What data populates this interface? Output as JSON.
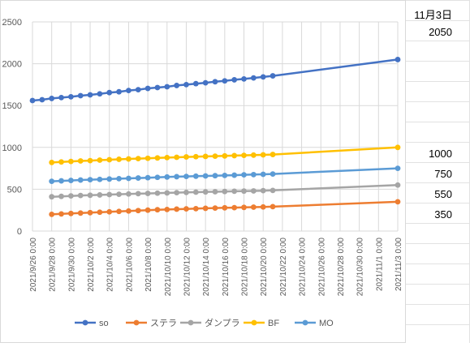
{
  "chart_data": {
    "type": "line",
    "x_tick_labels": [
      "2021/9/26 0:00",
      "2021/9/28 0:00",
      "2021/9/30 0:00",
      "2021/10/2 0:00",
      "2021/10/4 0:00",
      "2021/10/6 0:00",
      "2021/10/8 0:00",
      "2021/10/10 0:00",
      "2021/10/12 0:00",
      "2021/10/14 0:00",
      "2021/10/16 0:00",
      "2021/10/18 0:00",
      "2021/10/20 0:00",
      "2021/10/22 0:00",
      "2021/10/24 0:00",
      "2021/10/26 0:00",
      "2021/10/28 0:00",
      "2021/10/30 0:00",
      "2021/11/1 0:00",
      "2021/11/3 0:00"
    ],
    "y_ticks": [
      0,
      500,
      1000,
      1500,
      2000,
      2500
    ],
    "ylim": [
      0,
      2500
    ],
    "grid": true,
    "legend_position": "bottom",
    "series": [
      {
        "name": "so",
        "color": "#4472C4",
        "x": [
          "2021/9/26",
          "2021/9/27",
          "2021/9/28",
          "2021/9/29",
          "2021/9/30",
          "2021/10/1",
          "2021/10/2",
          "2021/10/3",
          "2021/10/4",
          "2021/10/5",
          "2021/10/6",
          "2021/10/7",
          "2021/10/8",
          "2021/10/9",
          "2021/10/10",
          "2021/10/11",
          "2021/10/12",
          "2021/10/13",
          "2021/10/14",
          "2021/10/15",
          "2021/10/16",
          "2021/10/17",
          "2021/10/18",
          "2021/10/19",
          "2021/10/20",
          "2021/10/21",
          "2021/11/3"
        ],
        "values": [
          1560,
          1570,
          1585,
          1595,
          1605,
          1618,
          1628,
          1640,
          1655,
          1665,
          1680,
          1690,
          1705,
          1715,
          1725,
          1740,
          1750,
          1762,
          1772,
          1785,
          1795,
          1808,
          1818,
          1830,
          1842,
          1855,
          2050
        ]
      },
      {
        "name": "ステラ",
        "color": "#ED7D31",
        "x": [
          "2021/9/28",
          "2021/9/29",
          "2021/9/30",
          "2021/10/1",
          "2021/10/2",
          "2021/10/3",
          "2021/10/4",
          "2021/10/5",
          "2021/10/6",
          "2021/10/7",
          "2021/10/8",
          "2021/10/9",
          "2021/10/10",
          "2021/10/11",
          "2021/10/12",
          "2021/10/13",
          "2021/10/14",
          "2021/10/15",
          "2021/10/16",
          "2021/10/17",
          "2021/10/18",
          "2021/10/19",
          "2021/10/20",
          "2021/10/21",
          "2021/11/3"
        ],
        "values": [
          200,
          205,
          210,
          215,
          220,
          225,
          230,
          235,
          240,
          245,
          250,
          255,
          258,
          262,
          265,
          268,
          272,
          275,
          278,
          280,
          283,
          286,
          288,
          292,
          350
        ]
      },
      {
        "name": "ダンプラ",
        "color": "#A5A5A5",
        "x": [
          "2021/9/28",
          "2021/9/29",
          "2021/9/30",
          "2021/10/1",
          "2021/10/2",
          "2021/10/3",
          "2021/10/4",
          "2021/10/5",
          "2021/10/6",
          "2021/10/7",
          "2021/10/8",
          "2021/10/9",
          "2021/10/10",
          "2021/10/11",
          "2021/10/12",
          "2021/10/13",
          "2021/10/14",
          "2021/10/15",
          "2021/10/16",
          "2021/10/17",
          "2021/10/18",
          "2021/10/19",
          "2021/10/20",
          "2021/10/21",
          "2021/11/3"
        ],
        "values": [
          410,
          415,
          420,
          425,
          428,
          432,
          436,
          440,
          443,
          447,
          450,
          453,
          456,
          459,
          462,
          465,
          468,
          470,
          473,
          476,
          478,
          480,
          483,
          486,
          550
        ]
      },
      {
        "name": "BF",
        "color": "#FFC000",
        "x": [
          "2021/9/28",
          "2021/9/29",
          "2021/9/30",
          "2021/10/1",
          "2021/10/2",
          "2021/10/3",
          "2021/10/4",
          "2021/10/5",
          "2021/10/6",
          "2021/10/7",
          "2021/10/8",
          "2021/10/9",
          "2021/10/10",
          "2021/10/11",
          "2021/10/12",
          "2021/10/13",
          "2021/10/14",
          "2021/10/15",
          "2021/10/16",
          "2021/10/17",
          "2021/10/18",
          "2021/10/19",
          "2021/10/20",
          "2021/10/21",
          "2021/11/3"
        ],
        "values": [
          820,
          826,
          832,
          838,
          842,
          848,
          853,
          858,
          862,
          866,
          870,
          874,
          878,
          882,
          886,
          889,
          892,
          895,
          898,
          902,
          905,
          908,
          911,
          915,
          1000
        ]
      },
      {
        "name": "MO",
        "color": "#5B9BD5",
        "x": [
          "2021/9/28",
          "2021/9/29",
          "2021/9/30",
          "2021/10/1",
          "2021/10/2",
          "2021/10/3",
          "2021/10/4",
          "2021/10/5",
          "2021/10/6",
          "2021/10/7",
          "2021/10/8",
          "2021/10/9",
          "2021/10/10",
          "2021/10/11",
          "2021/10/12",
          "2021/10/13",
          "2021/10/14",
          "2021/10/15",
          "2021/10/16",
          "2021/10/17",
          "2021/10/18",
          "2021/10/19",
          "2021/10/20",
          "2021/10/21",
          "2021/11/3"
        ],
        "values": [
          595,
          600,
          605,
          610,
          614,
          618,
          622,
          626,
          630,
          634,
          638,
          642,
          646,
          650,
          653,
          656,
          659,
          662,
          665,
          668,
          672,
          675,
          678,
          682,
          750
        ]
      }
    ]
  },
  "sheet_cells": {
    "date_header": "11月3日",
    "so_value": "2050",
    "bf_value": "1000",
    "mo_value": "750",
    "danpura_value": "550",
    "sutera_value": "350"
  }
}
